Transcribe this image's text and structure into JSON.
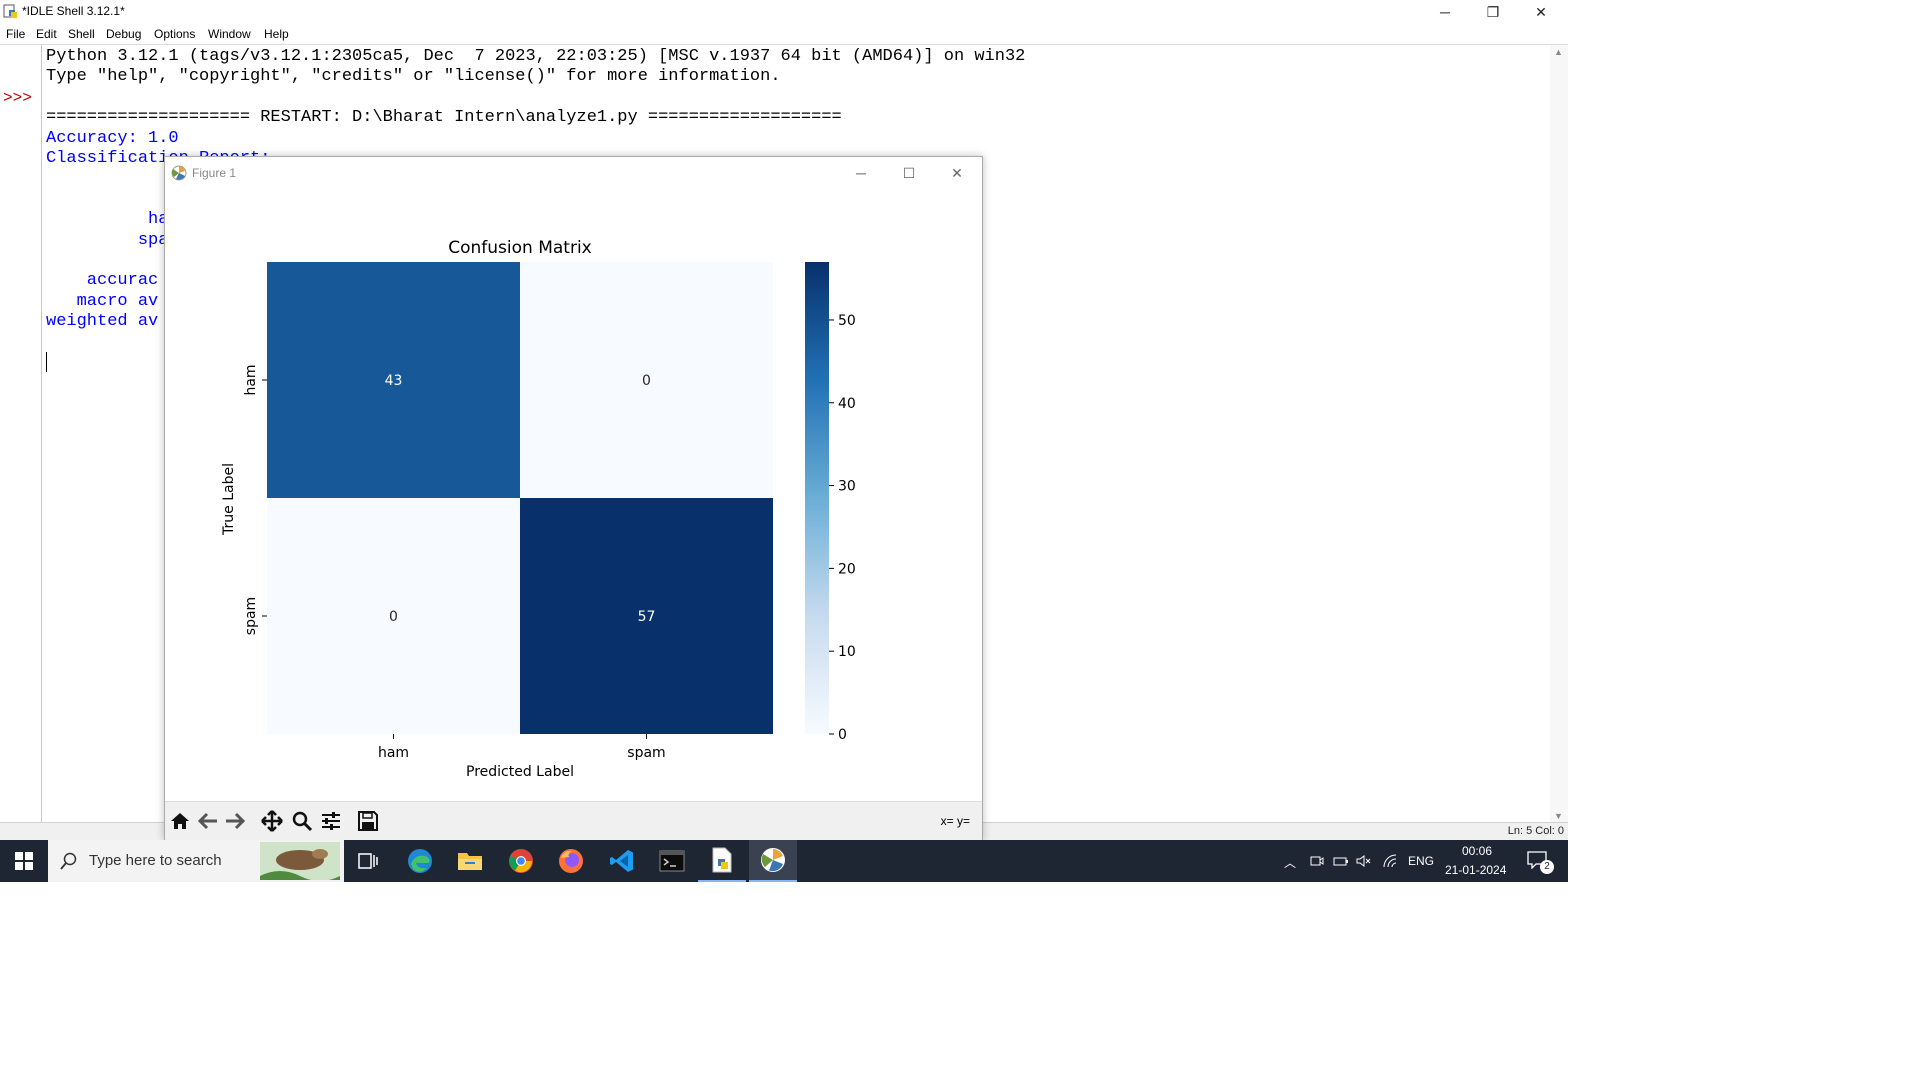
{
  "window": {
    "title": "*IDLE Shell 3.12.1*"
  },
  "menu": [
    "File",
    "Edit",
    "Shell",
    "Debug",
    "Options",
    "Window",
    "Help"
  ],
  "shell": {
    "prompt": ">>>",
    "lines": [
      "Python 3.12.1 (tags/v3.12.1:2305ca5, Dec  7 2023, 22:03:25) [MSC v.1937 64 bit (AMD64)] on win32",
      "Type \"help\", \"copyright\", \"credits\" or \"license()\" for more information.",
      "==================== RESTART: D:\\Bharat Intern\\analyze1.py ===================",
      "Accuracy: 1.0",
      "Classification Report:",
      "          ha",
      "         spa",
      "    accurac",
      "   macro av",
      "weighted av"
    ]
  },
  "status": {
    "position": "Ln: 5   Col: 0"
  },
  "figure": {
    "title": "Figure 1",
    "coord_readout": "x= y=",
    "toolbar": [
      "home-icon",
      "back-icon",
      "forward-icon",
      "pan-icon",
      "zoom-icon",
      "configure-icon",
      "save-icon"
    ]
  },
  "chart_data": {
    "type": "heatmap",
    "title": "Confusion Matrix",
    "xlabel": "Predicted Label",
    "ylabel": "True Label",
    "x_categories": [
      "ham",
      "spam"
    ],
    "y_categories": [
      "ham",
      "spam"
    ],
    "values": [
      [
        43,
        0
      ],
      [
        0,
        57
      ]
    ],
    "colormap": "Blues",
    "colorbar": {
      "min": 0,
      "max": 57,
      "ticks": [
        0,
        10,
        20,
        30,
        40,
        50
      ]
    },
    "colors": {
      "low": "#f7fbff",
      "mid": "#2171b5",
      "high": "#08306b"
    }
  },
  "taskbar": {
    "search_placeholder": "Type here to search",
    "apps": [
      "task-view-icon",
      "edge-icon",
      "file-explorer-icon",
      "chrome-icon",
      "firefox-icon",
      "vscode-icon",
      "terminal-icon",
      "idle-icon",
      "matplotlib-figure-icon"
    ],
    "language": "ENG",
    "time": "00:06",
    "date": "21-01-2024",
    "notification_count": "2"
  }
}
